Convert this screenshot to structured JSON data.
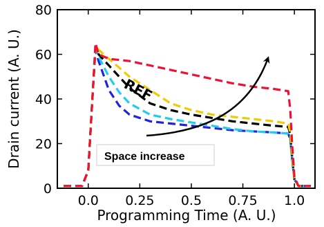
{
  "chart_data": {
    "type": "line",
    "xlabel": "Programming Time (A. U.)",
    "ylabel": "Drain current (A. U.)",
    "xlim": [
      -0.15,
      1.1
    ],
    "ylim": [
      0,
      80
    ],
    "xticks": [
      0.0,
      0.25,
      0.5,
      0.75,
      1.0
    ],
    "xtick_labels": [
      "0.0",
      "0.25",
      "0.5",
      "0.75",
      "1.0"
    ],
    "yticks": [
      0,
      20,
      40,
      60,
      80
    ],
    "ytick_labels": [
      "0",
      "20",
      "40",
      "60",
      "80"
    ],
    "grid": false,
    "legend": "none",
    "annotations": {
      "ref_label": "REF",
      "arrow_label": "Space increase"
    },
    "series": [
      {
        "color": "#2222dd",
        "x": [
          -0.12,
          -0.03,
          0.0,
          0.02,
          0.035,
          0.05,
          0.1,
          0.15,
          0.2,
          0.3,
          0.4,
          0.5,
          0.6,
          0.7,
          0.8,
          0.9,
          0.97,
          0.98,
          0.99,
          1.0,
          1.02,
          1.05,
          1.08
        ],
        "y": [
          1,
          1,
          8,
          40,
          62,
          57,
          44,
          37,
          33,
          30,
          29,
          28,
          27,
          26,
          25.5,
          25,
          24.5,
          22,
          12,
          4,
          1,
          1,
          1
        ]
      },
      {
        "color": "#22ccee",
        "x": [
          -0.12,
          -0.03,
          0.0,
          0.02,
          0.035,
          0.05,
          0.1,
          0.15,
          0.2,
          0.3,
          0.4,
          0.5,
          0.6,
          0.7,
          0.8,
          0.9,
          0.97,
          0.98,
          0.99,
          1.0,
          1.02,
          1.05,
          1.08
        ],
        "y": [
          1,
          1,
          8,
          40,
          62,
          59,
          50,
          43,
          38,
          33,
          31,
          29.5,
          28,
          26.5,
          25.5,
          25,
          24.5,
          22,
          12,
          4,
          1,
          1,
          1
        ]
      },
      {
        "color": "#000000",
        "x": [
          -0.12,
          -0.03,
          0.0,
          0.02,
          0.035,
          0.05,
          0.1,
          0.15,
          0.2,
          0.3,
          0.4,
          0.5,
          0.6,
          0.7,
          0.8,
          0.9,
          0.97,
          0.98,
          0.99,
          1.0,
          1.02,
          1.05,
          1.08
        ],
        "y": [
          1,
          1,
          8,
          40,
          63,
          60,
          55,
          50,
          45,
          38,
          35,
          33,
          31.5,
          30,
          29,
          28,
          27.5,
          24,
          13,
          4,
          1,
          1,
          1
        ]
      },
      {
        "color": "#eecc00",
        "x": [
          -0.12,
          -0.03,
          0.0,
          0.02,
          0.035,
          0.05,
          0.1,
          0.15,
          0.2,
          0.3,
          0.4,
          0.5,
          0.6,
          0.7,
          0.8,
          0.9,
          0.97,
          0.98,
          0.99,
          1.0,
          1.02,
          1.05,
          1.08
        ],
        "y": [
          1,
          1,
          8,
          40,
          64,
          62,
          58,
          54,
          50,
          44,
          38,
          35,
          33,
          32,
          31,
          30,
          29,
          25,
          14,
          4,
          1,
          1,
          1
        ]
      },
      {
        "color": "#ee1133",
        "x": [
          -0.12,
          -0.03,
          0.0,
          0.02,
          0.035,
          0.05,
          0.1,
          0.15,
          0.2,
          0.3,
          0.4,
          0.5,
          0.6,
          0.7,
          0.8,
          0.9,
          0.97,
          0.98,
          0.99,
          1.0,
          1.02,
          1.05,
          1.08
        ],
        "y": [
          1,
          1,
          8,
          40,
          65,
          60,
          58,
          57.5,
          57,
          55,
          53,
          51,
          49,
          47,
          45.5,
          44.5,
          43.5,
          35,
          18,
          5,
          1,
          1,
          1
        ]
      }
    ]
  }
}
